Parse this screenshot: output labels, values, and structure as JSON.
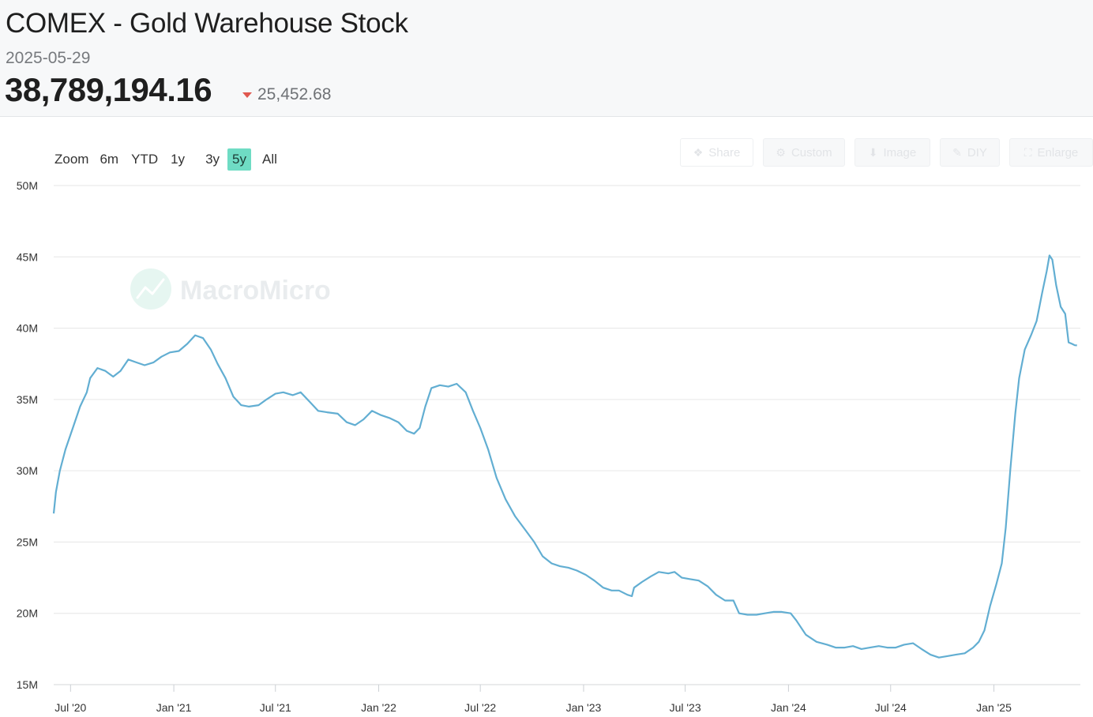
{
  "header": {
    "title": "COMEX - Gold Warehouse Stock",
    "date": "2025-05-29",
    "value": "38,789,194.16",
    "change": "25,452.68"
  },
  "zoom": {
    "label": "Zoom",
    "buttons": [
      "6m",
      "YTD",
      "1y",
      "3y",
      "5y",
      "All"
    ],
    "active": "5y"
  },
  "toolbar": {
    "share": "Share",
    "custom": "Custom",
    "image": "Image",
    "diy": "DIY",
    "enlarge": "Enlarge"
  },
  "watermark": "MacroMicro",
  "colors": {
    "line": "#62aed2",
    "active_zoom": "#6fdcc4",
    "down": "#e0584f"
  },
  "chart_data": {
    "type": "line",
    "title": "COMEX - Gold Warehouse Stock",
    "xlabel": "",
    "ylabel": "",
    "ylim": [
      15000000,
      50000000
    ],
    "xlim": [
      "2020-06-01",
      "2025-06-04"
    ],
    "yticks": [
      {
        "value": 15000000,
        "label": "15M"
      },
      {
        "value": 20000000,
        "label": "20M"
      },
      {
        "value": 25000000,
        "label": "25M"
      },
      {
        "value": 30000000,
        "label": "30M"
      },
      {
        "value": 35000000,
        "label": "35M"
      },
      {
        "value": 40000000,
        "label": "40M"
      },
      {
        "value": 45000000,
        "label": "45M"
      },
      {
        "value": 50000000,
        "label": "50M"
      }
    ],
    "xticks": [
      {
        "date": "2020-07-01",
        "label": "Jul '20"
      },
      {
        "date": "2021-01-01",
        "label": "Jan '21"
      },
      {
        "date": "2021-07-01",
        "label": "Jul '21"
      },
      {
        "date": "2022-01-01",
        "label": "Jan '22"
      },
      {
        "date": "2022-07-01",
        "label": "Jul '22"
      },
      {
        "date": "2023-01-01",
        "label": "Jan '23"
      },
      {
        "date": "2023-07-01",
        "label": "Jul '23"
      },
      {
        "date": "2024-01-01",
        "label": "Jan '24"
      },
      {
        "date": "2024-07-01",
        "label": "Jul '24"
      },
      {
        "date": "2025-01-01",
        "label": "Jan '25"
      }
    ],
    "grid": true,
    "series": [
      {
        "color": "#62aed2",
        "points": [
          [
            "2020-06-01",
            27.0
          ],
          [
            "2020-06-05",
            28.5
          ],
          [
            "2020-06-12",
            30.0
          ],
          [
            "2020-06-22",
            31.5
          ],
          [
            "2020-07-05",
            33.0
          ],
          [
            "2020-07-18",
            34.5
          ],
          [
            "2020-07-30",
            35.5
          ],
          [
            "2020-08-05",
            36.5
          ],
          [
            "2020-08-18",
            37.2
          ],
          [
            "2020-09-01",
            37.0
          ],
          [
            "2020-09-15",
            36.6
          ],
          [
            "2020-09-28",
            37.0
          ],
          [
            "2020-10-12",
            37.8
          ],
          [
            "2020-10-26",
            37.6
          ],
          [
            "2020-11-10",
            37.4
          ],
          [
            "2020-11-26",
            37.6
          ],
          [
            "2020-12-10",
            38.0
          ],
          [
            "2020-12-25",
            38.3
          ],
          [
            "2021-01-10",
            38.4
          ],
          [
            "2021-01-25",
            38.9
          ],
          [
            "2021-02-08",
            39.5
          ],
          [
            "2021-02-22",
            39.3
          ],
          [
            "2021-03-08",
            38.5
          ],
          [
            "2021-03-20",
            37.5
          ],
          [
            "2021-04-03",
            36.5
          ],
          [
            "2021-04-17",
            35.2
          ],
          [
            "2021-05-01",
            34.6
          ],
          [
            "2021-05-15",
            34.5
          ],
          [
            "2021-06-01",
            34.6
          ],
          [
            "2021-06-15",
            35.0
          ],
          [
            "2021-07-01",
            35.4
          ],
          [
            "2021-07-15",
            35.5
          ],
          [
            "2021-08-01",
            35.3
          ],
          [
            "2021-08-15",
            35.5
          ],
          [
            "2021-09-01",
            34.8
          ],
          [
            "2021-09-15",
            34.2
          ],
          [
            "2021-10-01",
            34.1
          ],
          [
            "2021-10-20",
            34.0
          ],
          [
            "2021-11-05",
            33.4
          ],
          [
            "2021-11-20",
            33.2
          ],
          [
            "2021-12-05",
            33.6
          ],
          [
            "2021-12-20",
            34.2
          ],
          [
            "2022-01-05",
            33.9
          ],
          [
            "2022-01-20",
            33.7
          ],
          [
            "2022-02-05",
            33.4
          ],
          [
            "2022-02-20",
            32.8
          ],
          [
            "2022-03-05",
            32.6
          ],
          [
            "2022-03-15",
            33.0
          ],
          [
            "2022-03-25",
            34.5
          ],
          [
            "2022-04-05",
            35.8
          ],
          [
            "2022-04-20",
            36.0
          ],
          [
            "2022-05-05",
            35.9
          ],
          [
            "2022-05-20",
            36.1
          ],
          [
            "2022-06-05",
            35.5
          ],
          [
            "2022-06-18",
            34.2
          ],
          [
            "2022-07-01",
            33.0
          ],
          [
            "2022-07-15",
            31.5
          ],
          [
            "2022-07-30",
            29.5
          ],
          [
            "2022-08-15",
            28.0
          ],
          [
            "2022-09-01",
            26.8
          ],
          [
            "2022-09-20",
            25.8
          ],
          [
            "2022-10-05",
            25.0
          ],
          [
            "2022-10-20",
            24.0
          ],
          [
            "2022-11-05",
            23.5
          ],
          [
            "2022-11-20",
            23.3
          ],
          [
            "2022-12-05",
            23.2
          ],
          [
            "2022-12-20",
            23.0
          ],
          [
            "2023-01-05",
            22.7
          ],
          [
            "2023-01-20",
            22.3
          ],
          [
            "2023-02-05",
            21.8
          ],
          [
            "2023-02-20",
            21.6
          ],
          [
            "2023-03-05",
            21.6
          ],
          [
            "2023-03-20",
            21.3
          ],
          [
            "2023-03-28",
            21.2
          ],
          [
            "2023-04-01",
            21.8
          ],
          [
            "2023-04-15",
            22.2
          ],
          [
            "2023-05-01",
            22.6
          ],
          [
            "2023-05-15",
            22.9
          ],
          [
            "2023-06-01",
            22.8
          ],
          [
            "2023-06-12",
            22.9
          ],
          [
            "2023-06-25",
            22.5
          ],
          [
            "2023-07-10",
            22.4
          ],
          [
            "2023-07-25",
            22.3
          ],
          [
            "2023-08-10",
            21.9
          ],
          [
            "2023-08-25",
            21.3
          ],
          [
            "2023-09-10",
            20.9
          ],
          [
            "2023-09-25",
            20.9
          ],
          [
            "2023-10-05",
            20.0
          ],
          [
            "2023-10-20",
            19.9
          ],
          [
            "2023-11-05",
            19.9
          ],
          [
            "2023-11-20",
            20.0
          ],
          [
            "2023-12-05",
            20.1
          ],
          [
            "2023-12-20",
            20.1
          ],
          [
            "2024-01-05",
            20.0
          ],
          [
            "2024-01-15",
            19.5
          ],
          [
            "2024-02-01",
            18.5
          ],
          [
            "2024-02-20",
            18.0
          ],
          [
            "2024-03-10",
            17.8
          ],
          [
            "2024-03-25",
            17.6
          ],
          [
            "2024-04-10",
            17.6
          ],
          [
            "2024-04-25",
            17.7
          ],
          [
            "2024-05-10",
            17.5
          ],
          [
            "2024-05-25",
            17.6
          ],
          [
            "2024-06-10",
            17.7
          ],
          [
            "2024-06-25",
            17.6
          ],
          [
            "2024-07-10",
            17.6
          ],
          [
            "2024-07-25",
            17.8
          ],
          [
            "2024-08-10",
            17.9
          ],
          [
            "2024-08-25",
            17.5
          ],
          [
            "2024-09-10",
            17.1
          ],
          [
            "2024-09-25",
            16.9
          ],
          [
            "2024-10-10",
            17.0
          ],
          [
            "2024-10-25",
            17.1
          ],
          [
            "2024-11-10",
            17.2
          ],
          [
            "2024-11-25",
            17.6
          ],
          [
            "2024-12-05",
            18.0
          ],
          [
            "2024-12-15",
            18.8
          ],
          [
            "2024-12-25",
            20.5
          ],
          [
            "2025-01-05",
            22.0
          ],
          [
            "2025-01-15",
            23.5
          ],
          [
            "2025-01-22",
            26.0
          ],
          [
            "2025-01-30",
            30.0
          ],
          [
            "2025-02-08",
            34.0
          ],
          [
            "2025-02-15",
            36.5
          ],
          [
            "2025-02-25",
            38.5
          ],
          [
            "2025-03-08",
            39.5
          ],
          [
            "2025-03-18",
            40.5
          ],
          [
            "2025-03-28",
            42.5
          ],
          [
            "2025-04-05",
            44.0
          ],
          [
            "2025-04-10",
            45.1
          ],
          [
            "2025-04-15",
            44.8
          ],
          [
            "2025-04-22",
            43.0
          ],
          [
            "2025-04-30",
            41.5
          ],
          [
            "2025-05-08",
            41.0
          ],
          [
            "2025-05-14",
            39.0
          ],
          [
            "2025-05-20",
            38.9
          ],
          [
            "2025-05-25",
            38.8
          ],
          [
            "2025-05-29",
            38.79
          ]
        ]
      }
    ]
  }
}
